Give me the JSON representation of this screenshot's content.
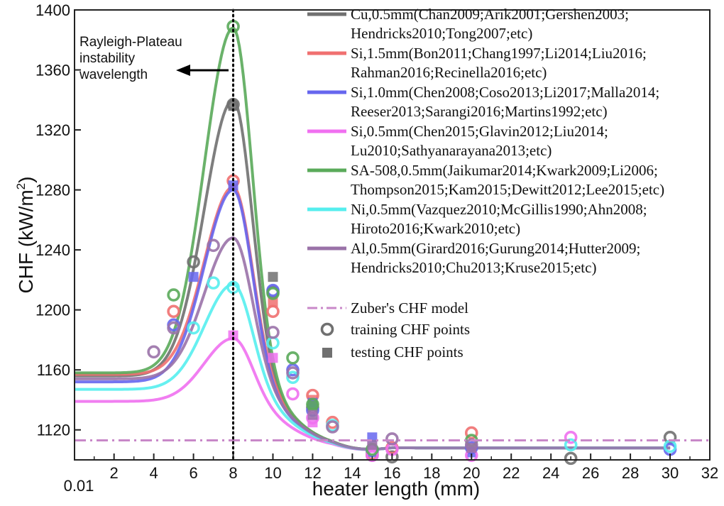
{
  "chart_data": {
    "type": "line",
    "xlabel": "heater length (mm)",
    "ylabel": "CHF (kW/m",
    "ylabel_sup": "2",
    "ylabel_close": ")",
    "xlim": [
      0.01,
      32
    ],
    "ylim": [
      1100,
      1400
    ],
    "x_ticks": [
      0.01,
      2,
      4,
      6,
      8,
      10,
      12,
      14,
      16,
      18,
      20,
      22,
      24,
      26,
      28,
      30,
      32
    ],
    "x_tick_labels": [
      "0.01",
      "2",
      "4",
      "6",
      "8",
      "10",
      "12",
      "14",
      "16",
      "18",
      "20",
      "22",
      "24",
      "26",
      "28",
      "30",
      "32"
    ],
    "y_ticks": [
      1120,
      1160,
      1200,
      1240,
      1280,
      1320,
      1360,
      1400
    ],
    "y_tick_labels": [
      "1120",
      "1160",
      "1200",
      "1240",
      "1280",
      "1320",
      "1360",
      "1400"
    ],
    "grid": false,
    "legend_position": "top-right",
    "annotation": {
      "lines": [
        "Rayleigh-Plateau",
        "instability",
        "wavelength"
      ],
      "vertical_line_x": 8
    },
    "zuber_model": {
      "label": "Zuber's CHF model",
      "value": 1113,
      "color": "#c888c8"
    },
    "marker_legend": {
      "training": "training CHF points",
      "testing": "testing CHF points",
      "color": "#707070"
    },
    "series": [
      {
        "name_lines": [
          "Cu,0.5mm(Chan2009;Arik2001;Gershen2003;",
          "Hendricks2010;Tong2007;etc)"
        ],
        "color": "#707070",
        "base": 1156,
        "peak": 1340,
        "tail": 1108,
        "training": [
          [
            6,
            1232
          ],
          [
            8,
            1337
          ],
          [
            10,
            1212
          ],
          [
            12,
            1135
          ],
          [
            15,
            1103
          ],
          [
            16,
            1102
          ],
          [
            25,
            1101
          ],
          [
            30,
            1115
          ]
        ],
        "testing": [
          [
            8,
            1336
          ],
          [
            10,
            1222
          ],
          [
            12,
            1137
          ]
        ]
      },
      {
        "name_lines": [
          "Si,1.5mm(Bon2011;Chang1997;Li2014;Liu2016;",
          "Rahman2016;Recinella2016;etc)"
        ],
        "color": "#f07070",
        "base": 1157,
        "peak": 1282,
        "tail": 1108,
        "training": [
          [
            5,
            1199
          ],
          [
            8,
            1286
          ],
          [
            10,
            1199
          ],
          [
            12,
            1143
          ],
          [
            13,
            1125
          ],
          [
            15,
            1104
          ],
          [
            16,
            1108
          ],
          [
            20,
            1118
          ]
        ],
        "testing": [
          [
            10,
            1205
          ],
          [
            12,
            1140
          ]
        ]
      },
      {
        "name_lines": [
          "Si,1.0mm(Chen2008;Coso2013;Li2017;Malla2014;",
          "Reeser2013;Sarangi2016;Martins1992;etc)"
        ],
        "color": "#6666ee",
        "base": 1152,
        "peak": 1280,
        "tail": 1108,
        "training": [
          [
            5,
            1190
          ],
          [
            10,
            1213
          ],
          [
            11,
            1160
          ],
          [
            12,
            1133
          ],
          [
            15,
            1106
          ],
          [
            20,
            1108
          ],
          [
            30,
            1107
          ]
        ],
        "testing": [
          [
            6,
            1222
          ],
          [
            8,
            1283
          ],
          [
            12,
            1138
          ],
          [
            15,
            1115
          ],
          [
            20,
            1105
          ]
        ]
      },
      {
        "name_lines": [
          "Si,0.5mm(Chen2015;Glavin2012;Liu2014;",
          "Lu2010;Sathyanarayana2013;etc)"
        ],
        "color": "#f070f0",
        "base": 1139,
        "peak": 1181,
        "tail": 1108,
        "training": [
          [
            11,
            1144
          ],
          [
            12,
            1128
          ],
          [
            15,
            1103
          ],
          [
            16,
            1107
          ],
          [
            20,
            1103
          ],
          [
            25,
            1115
          ]
        ],
        "testing": [
          [
            8,
            1183
          ],
          [
            10,
            1168
          ],
          [
            12,
            1125
          ],
          [
            15,
            1108
          ]
        ]
      },
      {
        "name_lines": [
          "SA-508,0.5mm(Jaikumar2014;Kwark2009;Li2006;",
          "Thompson2015;Kam2015;Dewitt2012;Lee2015;etc)"
        ],
        "color": "#5aaa5a",
        "base": 1158,
        "peak": 1388,
        "tail": 1108,
        "training": [
          [
            5,
            1210
          ],
          [
            8,
            1389
          ],
          [
            10,
            1211
          ],
          [
            11,
            1168
          ],
          [
            12,
            1137
          ],
          [
            15,
            1107
          ],
          [
            20,
            1113
          ]
        ],
        "testing": [
          [
            12,
            1136
          ]
        ]
      },
      {
        "name_lines": [
          "Ni,0.5mm(Vazquez2010;McGillis1990;Ahn2008;",
          "Hiroto2016;Kwark2010;etc)"
        ],
        "color": "#55eeee",
        "base": 1147,
        "peak": 1217,
        "tail": 1108,
        "training": [
          [
            6,
            1188
          ],
          [
            7,
            1218
          ],
          [
            8,
            1215
          ],
          [
            10,
            1178
          ],
          [
            11,
            1155
          ],
          [
            13,
            1123
          ],
          [
            25,
            1110
          ],
          [
            30,
            1109
          ]
        ],
        "testing": []
      },
      {
        "name_lines": [
          "Al,0.5mm(Girard2016;Gurung2014;Hutter2009;",
          "Hendricks2010;Chu2013;Kruse2015;etc)"
        ],
        "color": "#9a72a8",
        "base": 1154,
        "peak": 1248,
        "tail": 1108,
        "training": [
          [
            4,
            1172
          ],
          [
            5,
            1188
          ],
          [
            7,
            1243
          ],
          [
            10,
            1185
          ],
          [
            11,
            1158
          ],
          [
            13,
            1122
          ],
          [
            16,
            1114
          ],
          [
            20,
            1110
          ]
        ],
        "testing": [
          [
            12,
            1130
          ],
          [
            15,
            1110
          ],
          [
            20,
            1108
          ]
        ]
      }
    ]
  }
}
